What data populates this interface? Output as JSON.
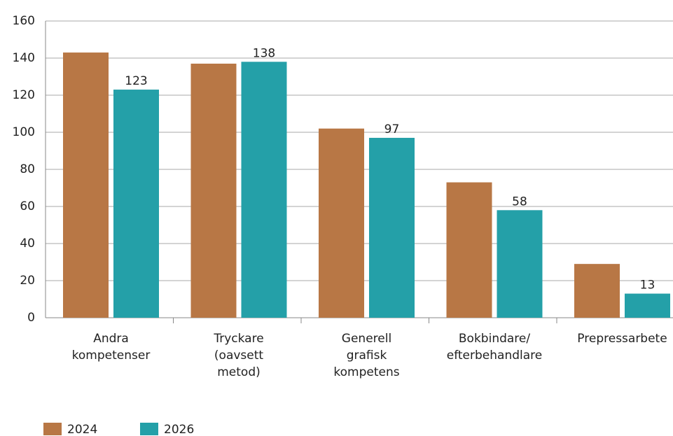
{
  "chart_data": {
    "type": "bar",
    "categories": [
      [
        "Andra",
        "kompetenser"
      ],
      [
        "Tryckare",
        "(oavsett",
        "metod)"
      ],
      [
        "Generell",
        "grafisk",
        "kompetens"
      ],
      [
        "Bokbindare/",
        "efterbehandlare"
      ],
      [
        "Prepressarbete"
      ]
    ],
    "series": [
      {
        "name": "2024",
        "color": "#b87745",
        "values": [
          143,
          137,
          102,
          73,
          29
        ],
        "data_labels": false
      },
      {
        "name": "2026",
        "color": "#24a0a8",
        "values": [
          123,
          138,
          97,
          58,
          13
        ],
        "data_labels": true
      }
    ],
    "ylim": [
      0,
      160
    ],
    "yticks": [
      0,
      20,
      40,
      60,
      80,
      100,
      120,
      140,
      160
    ],
    "grid": true
  }
}
